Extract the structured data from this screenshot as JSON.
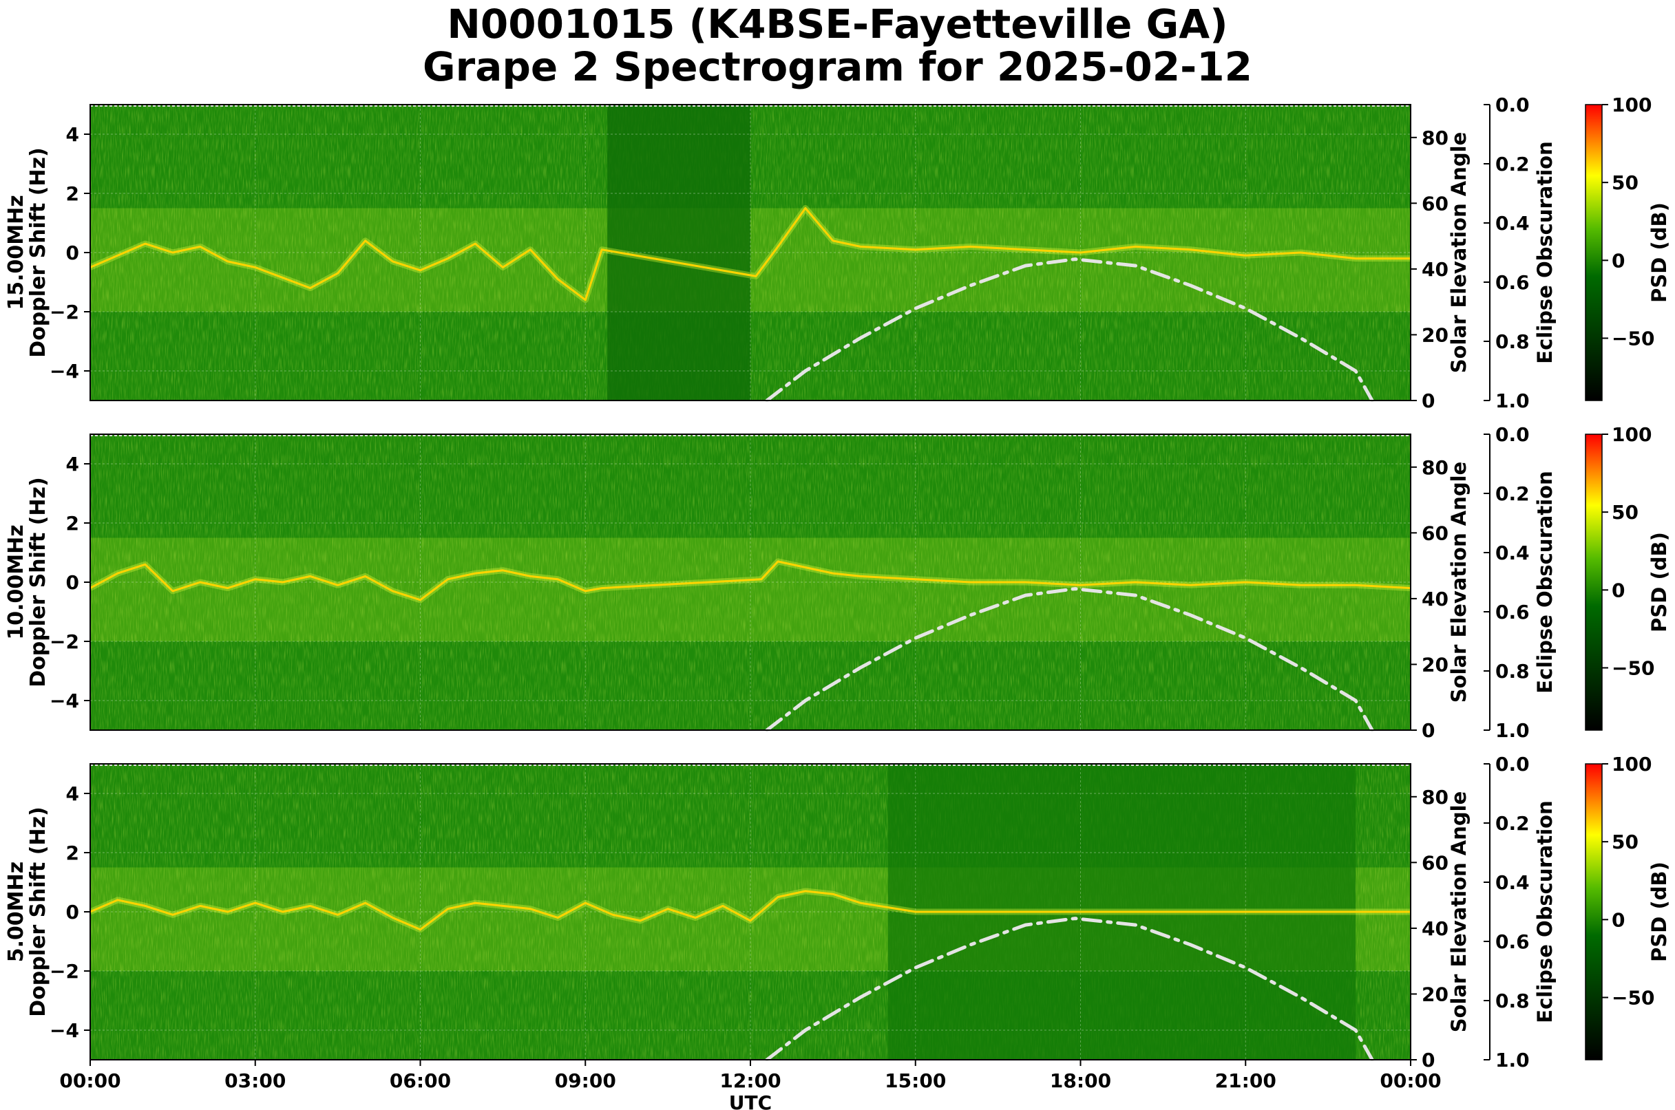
{
  "title_line1": "N0001015 (K4BSE-Fayetteville GA)",
  "title_line2": "Grape 2 Spectrogram for 2025-02-12",
  "chart_data": {
    "type": "heatmap",
    "x_axis": {
      "label": "UTC",
      "ticks": [
        "00:00",
        "03:00",
        "06:00",
        "09:00",
        "12:00",
        "15:00",
        "18:00",
        "21:00",
        "00:00"
      ],
      "range_hours": [
        0,
        24
      ]
    },
    "y_axis": {
      "ylim": [
        -5,
        5
      ],
      "ticks": [
        "4",
        "2",
        "0",
        "−2",
        "−4"
      ]
    },
    "right_axis": {
      "label": "Solar Elevation Angle",
      "ylim": [
        0,
        90
      ],
      "ticks": [
        "0",
        "20",
        "40",
        "60",
        "80"
      ]
    },
    "eclipse_axis": {
      "label": "Eclipse Obscuration",
      "ylim": [
        1.0,
        0.0
      ],
      "ticks": [
        "0.0",
        "0.2",
        "0.4",
        "0.6",
        "0.8",
        "1.0"
      ]
    },
    "colorbar": {
      "label": "PSD (dB)",
      "range": [
        -90,
        100
      ],
      "ticks": [
        "100",
        "50",
        "0",
        "−50"
      ],
      "colors": [
        "#000000",
        "#007700",
        "#66cc00",
        "#ffff00",
        "#ff0000"
      ]
    },
    "solar_elevation": {
      "hours": [
        12.3,
        13,
        14,
        15,
        16,
        17,
        17.9,
        19,
        20,
        21,
        22,
        23,
        23.3
      ],
      "degrees": [
        0,
        9,
        19,
        28,
        35,
        41,
        43,
        41,
        35,
        28,
        19,
        9,
        0
      ]
    },
    "panels": [
      {
        "ylabel_freq": "15.00MHz",
        "ylabel_axis": "Doppler Shift (Hz)",
        "trace": {
          "hours": [
            0,
            0.5,
            1,
            1.5,
            2,
            2.5,
            3,
            4,
            4.5,
            5,
            5.5,
            6,
            6.5,
            7,
            7.5,
            8,
            8.5,
            9,
            9.3,
            12.1,
            12.5,
            13,
            13.5,
            14,
            15,
            16,
            17,
            18,
            19,
            20,
            21,
            22,
            23,
            24
          ],
          "doppler": [
            -0.5,
            -0.1,
            0.3,
            0.0,
            0.2,
            -0.3,
            -0.5,
            -1.2,
            -0.7,
            0.4,
            -0.3,
            -0.6,
            -0.2,
            0.3,
            -0.5,
            0.1,
            -0.9,
            -1.6,
            0.1,
            -0.8,
            0.2,
            1.5,
            0.4,
            0.2,
            0.1,
            0.2,
            0.1,
            0.0,
            0.2,
            0.1,
            -0.1,
            0.0,
            -0.2,
            -0.2
          ]
        }
      },
      {
        "ylabel_freq": "10.00MHz",
        "ylabel_axis": "Doppler Shift (Hz)",
        "trace": {
          "hours": [
            0,
            0.5,
            1,
            1.5,
            2,
            2.5,
            3,
            3.5,
            4,
            4.5,
            5,
            5.5,
            6,
            6.5,
            7,
            7.5,
            8,
            8.5,
            9,
            9.3,
            12.2,
            12.5,
            13,
            13.5,
            14,
            15,
            16,
            17,
            18,
            19,
            20,
            21,
            22,
            23,
            24
          ],
          "doppler": [
            -0.2,
            0.3,
            0.6,
            -0.3,
            0.0,
            -0.2,
            0.1,
            0.0,
            0.2,
            -0.1,
            0.2,
            -0.3,
            -0.6,
            0.1,
            0.3,
            0.4,
            0.2,
            0.1,
            -0.3,
            -0.2,
            0.1,
            0.7,
            0.5,
            0.3,
            0.2,
            0.1,
            0.0,
            0.0,
            -0.1,
            0.0,
            -0.1,
            0.0,
            -0.1,
            -0.1,
            -0.2
          ]
        }
      },
      {
        "ylabel_freq": "5.00MHz",
        "ylabel_axis": "Doppler Shift (Hz)",
        "trace": {
          "hours": [
            0,
            0.5,
            1,
            1.5,
            2,
            2.5,
            3,
            3.5,
            4,
            4.5,
            5,
            5.5,
            6,
            6.5,
            7,
            7.5,
            8,
            8.5,
            9,
            9.5,
            10,
            10.5,
            11,
            11.5,
            12,
            12.5,
            13,
            13.5,
            14,
            15,
            24
          ],
          "doppler": [
            0.0,
            0.4,
            0.2,
            -0.1,
            0.2,
            0.0,
            0.3,
            0.0,
            0.2,
            -0.1,
            0.3,
            -0.2,
            -0.6,
            0.1,
            0.3,
            0.2,
            0.1,
            -0.2,
            0.3,
            -0.1,
            -0.3,
            0.1,
            -0.2,
            0.2,
            -0.3,
            0.5,
            0.7,
            0.6,
            0.3,
            0.0,
            0.0
          ]
        }
      }
    ]
  }
}
